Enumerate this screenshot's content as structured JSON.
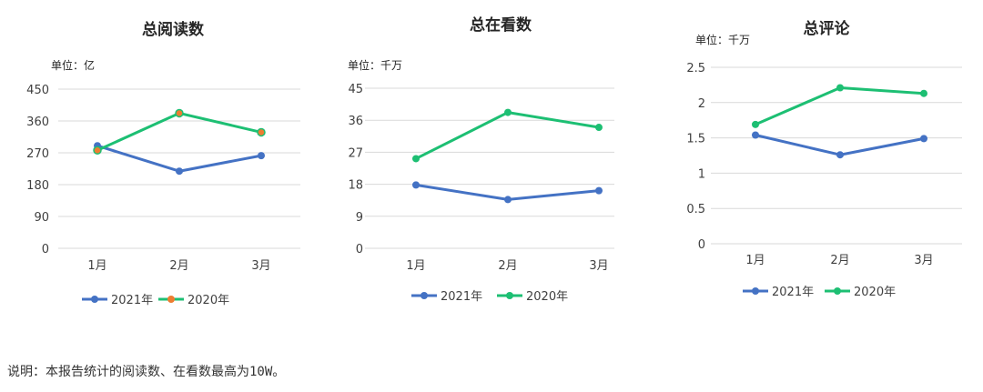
{
  "colors": {
    "s2021": "#4472C4",
    "s2020": "#1DBF73",
    "marker2020_overlap": "#ED7D31",
    "grid": "#D9D9D9",
    "text": "#404040"
  },
  "chart_data": [
    {
      "type": "line",
      "title": "总阅读数",
      "unit": "单位：亿",
      "categories": [
        "1月",
        "2月",
        "3月"
      ],
      "yticks": [
        "0",
        "90",
        "180",
        "270",
        "360",
        "450"
      ],
      "ylim": [
        0,
        450
      ],
      "series": [
        {
          "name": "2021年",
          "values": [
            290,
            218,
            262
          ]
        },
        {
          "name": "2020年",
          "values": [
            277,
            382,
            328
          ]
        }
      ],
      "legend": "bottom"
    },
    {
      "type": "line",
      "title": "总在看数",
      "unit": "单位：千万",
      "categories": [
        "1月",
        "2月",
        "3月"
      ],
      "yticks": [
        "0",
        "9",
        "18",
        "27",
        "36",
        "45"
      ],
      "ylim": [
        0,
        45
      ],
      "series": [
        {
          "name": "2021年",
          "values": [
            17.8,
            13.7,
            16.2
          ]
        },
        {
          "name": "2020年",
          "values": [
            25.2,
            38.2,
            34.0
          ]
        }
      ],
      "legend": "bottom"
    },
    {
      "type": "line",
      "title": "总评论",
      "unit": "单位：千万",
      "categories": [
        "1月",
        "2月",
        "3月"
      ],
      "yticks": [
        "0",
        "0.5",
        "1",
        "1.5",
        "2",
        "2.5"
      ],
      "ylim": [
        0,
        2.5
      ],
      "series": [
        {
          "name": "2021年",
          "values": [
            1.54,
            1.26,
            1.49
          ]
        },
        {
          "name": "2020年",
          "values": [
            1.69,
            2.21,
            2.13
          ]
        }
      ],
      "legend": "bottom"
    }
  ],
  "note": "说明：本报告统计的阅读数、在看数最高为10W。"
}
